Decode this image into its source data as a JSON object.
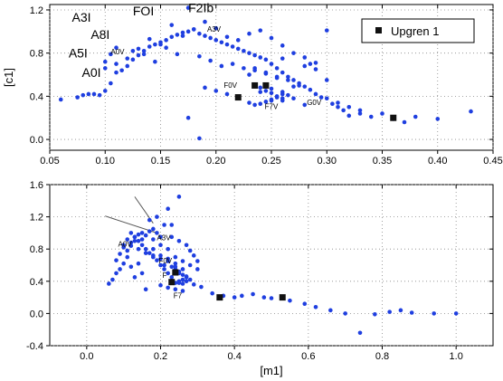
{
  "chart_data": [
    {
      "type": "scatter",
      "title": "",
      "xlabel": "",
      "ylabel": "[c1]",
      "xlim": [
        0.05,
        0.45
      ],
      "ylim": [
        -0.1,
        1.25
      ],
      "xticks": [
        "0.05",
        "0.10",
        "0.15",
        "0.20",
        "0.25",
        "0.30",
        "0.35",
        "0.40",
        "0.45"
      ],
      "yticks": [
        "0.0",
        "0.4",
        "0.8",
        "1.2"
      ],
      "grid": true,
      "legend": {
        "position": "top-right",
        "entries": [
          "Upgren 1"
        ]
      },
      "series": [
        {
          "name": "",
          "color": "#1f3fe0",
          "marker": "circle",
          "x": [
            0.06,
            0.075,
            0.08,
            0.085,
            0.09,
            0.095,
            0.1,
            0.105,
            0.11,
            0.12,
            0.125,
            0.13,
            0.135,
            0.14,
            0.145,
            0.15,
            0.155,
            0.16,
            0.165,
            0.17,
            0.175,
            0.18,
            0.185,
            0.19,
            0.195,
            0.2,
            0.205,
            0.21,
            0.215,
            0.22,
            0.225,
            0.23,
            0.235,
            0.24,
            0.245,
            0.25,
            0.255,
            0.26,
            0.265,
            0.27,
            0.275,
            0.28,
            0.285,
            0.29,
            0.3,
            0.31,
            0.32,
            0.33,
            0.35,
            0.38,
            0.4,
            0.43,
            0.1,
            0.11,
            0.115,
            0.12,
            0.13,
            0.14,
            0.15,
            0.16,
            0.17,
            0.175,
            0.18,
            0.19,
            0.2,
            0.21,
            0.22,
            0.23,
            0.24,
            0.25,
            0.26,
            0.27,
            0.28,
            0.29,
            0.125,
            0.135,
            0.145,
            0.155,
            0.165,
            0.185,
            0.195,
            0.205,
            0.215,
            0.225,
            0.235,
            0.245,
            0.255,
            0.265,
            0.275,
            0.24,
            0.245,
            0.25,
            0.255,
            0.26,
            0.25,
            0.245,
            0.24,
            0.235,
            0.23,
            0.22,
            0.21,
            0.2,
            0.19,
            0.175,
            0.185,
            0.26,
            0.28,
            0.295,
            0.305,
            0.31,
            0.315,
            0.32,
            0.33,
            0.34,
            0.36,
            0.37,
            0.25,
            0.255,
            0.26,
            0.265,
            0.27,
            0.24,
            0.25,
            0.26,
            0.27,
            0.285,
            0.29,
            0.3,
            0.245,
            0.255,
            0.235,
            0.23,
            0.26,
            0.28,
            0.3,
            0.1,
            0.105,
            0.11
          ],
          "y": [
            0.37,
            0.39,
            0.41,
            0.42,
            0.42,
            0.41,
            0.45,
            0.52,
            0.62,
            0.68,
            0.74,
            0.78,
            0.82,
            0.86,
            0.88,
            0.9,
            0.92,
            0.95,
            0.97,
            0.99,
            1.0,
            1.02,
            0.98,
            0.96,
            0.94,
            0.92,
            0.9,
            0.88,
            0.86,
            0.84,
            0.82,
            0.8,
            0.78,
            0.76,
            0.74,
            0.7,
            0.66,
            0.62,
            0.58,
            0.55,
            0.52,
            0.49,
            0.46,
            0.42,
            0.38,
            0.34,
            0.3,
            0.27,
            0.24,
            0.21,
            0.19,
            0.26,
            0.66,
            0.7,
            0.64,
            0.75,
            0.84,
            0.93,
            0.88,
            1.06,
            0.96,
            1.22,
            1.02,
            1.09,
            1.03,
            0.95,
            0.92,
            0.98,
            1.01,
            0.94,
            0.87,
            0.8,
            0.76,
            0.71,
            0.82,
            0.79,
            0.72,
            0.85,
            0.79,
            0.77,
            0.73,
            0.68,
            0.7,
            0.66,
            0.64,
            0.61,
            0.58,
            0.55,
            0.5,
            0.48,
            0.45,
            0.43,
            0.4,
            0.38,
            0.36,
            0.35,
            0.33,
            0.32,
            0.34,
            0.38,
            0.42,
            0.45,
            0.48,
            0.2,
            0.01,
            0.42,
            0.32,
            0.39,
            0.33,
            0.3,
            0.27,
            0.22,
            0.24,
            0.21,
            0.19,
            0.16,
            0.37,
            0.39,
            0.36,
            0.41,
            0.38,
            0.44,
            0.47,
            0.44,
            0.49,
            0.7,
            0.65,
            1.01,
            0.62,
            0.57,
            0.66,
            0.6,
            0.75,
            0.68,
            0.55,
            0.72,
            0.79,
            0.85
          ]
        },
        {
          "name": "Upgren 1",
          "color": "#111111",
          "marker": "square",
          "x": [
            0.22,
            0.235,
            0.245,
            0.36
          ],
          "y": [
            0.39,
            0.5,
            0.5,
            0.2
          ]
        }
      ],
      "annotations": [
        {
          "text": "A3I",
          "x": 0.07,
          "y": 1.09,
          "size": "large"
        },
        {
          "text": "A8I",
          "x": 0.087,
          "y": 0.93,
          "size": "large"
        },
        {
          "text": "A5I",
          "x": 0.067,
          "y": 0.76,
          "size": "large"
        },
        {
          "text": "A0I",
          "x": 0.079,
          "y": 0.58,
          "size": "large"
        },
        {
          "text": "FOI",
          "x": 0.125,
          "y": 1.15,
          "size": "large"
        },
        {
          "text": "F2Ib",
          "x": 0.175,
          "y": 1.18,
          "size": "large"
        },
        {
          "text": "A0V",
          "x": 0.105,
          "y": 0.79,
          "size": "small"
        },
        {
          "text": "A3V",
          "x": 0.192,
          "y": 1.0,
          "size": "small"
        },
        {
          "text": "F0V",
          "x": 0.207,
          "y": 0.48,
          "size": "small"
        },
        {
          "text": "F7V",
          "x": 0.244,
          "y": 0.28,
          "size": "small"
        },
        {
          "text": "G0V",
          "x": 0.282,
          "y": 0.32,
          "size": "small"
        }
      ]
    },
    {
      "type": "scatter",
      "title": "",
      "xlabel": "[m1]",
      "ylabel": "",
      "xlim": [
        -0.1,
        1.1
      ],
      "ylim": [
        -0.4,
        1.6
      ],
      "xticks": [
        "0.0",
        "0.2",
        "0.4",
        "0.6",
        "0.8",
        "1.0"
      ],
      "yticks": [
        "-0.4",
        "0.0",
        "0.4",
        "0.8",
        "1.2",
        "1.6"
      ],
      "grid": true,
      "series": [
        {
          "name": "",
          "color": "#1f3fe0",
          "marker": "circle",
          "x": [
            0.06,
            0.07,
            0.08,
            0.09,
            0.1,
            0.11,
            0.11,
            0.12,
            0.13,
            0.13,
            0.14,
            0.15,
            0.15,
            0.16,
            0.17,
            0.18,
            0.19,
            0.2,
            0.1,
            0.12,
            0.14,
            0.16,
            0.18,
            0.2,
            0.22,
            0.21,
            0.23,
            0.24,
            0.25,
            0.26,
            0.27,
            0.26,
            0.25,
            0.24,
            0.23,
            0.22,
            0.21,
            0.2,
            0.19,
            0.18,
            0.17,
            0.16,
            0.15,
            0.14,
            0.13,
            0.12,
            0.11,
            0.1,
            0.09,
            0.08,
            0.17,
            0.19,
            0.21,
            0.23,
            0.25,
            0.27,
            0.29,
            0.22,
            0.24,
            0.26,
            0.28,
            0.3,
            0.25,
            0.26,
            0.27,
            0.28,
            0.29,
            0.31,
            0.22,
            0.24,
            0.26,
            0.24,
            0.25,
            0.23,
            0.34,
            0.37,
            0.4,
            0.42,
            0.45,
            0.48,
            0.5,
            0.55,
            0.59,
            0.62,
            0.66,
            0.7,
            0.74,
            0.78,
            0.82,
            0.85,
            0.88,
            0.94,
            1.0,
            0.25,
            0.27,
            0.24,
            0.26,
            0.2,
            0.22,
            0.18,
            0.15,
            0.13,
            0.2,
            0.16,
            0.28,
            0.3,
            0.12,
            0.14,
            0.18,
            0.2,
            0.22
          ],
          "y": [
            0.37,
            0.42,
            0.5,
            0.55,
            0.62,
            0.7,
            0.78,
            0.84,
            0.9,
            0.95,
            0.98,
            1.0,
            0.92,
            0.97,
            1.02,
            1.05,
            1.0,
            0.95,
            0.85,
            0.88,
            0.8,
            0.75,
            0.72,
            0.68,
            0.65,
            0.6,
            0.58,
            0.55,
            0.52,
            0.48,
            0.45,
            0.42,
            0.4,
            0.38,
            0.45,
            0.5,
            0.55,
            0.6,
            0.66,
            0.7,
            0.75,
            0.8,
            0.85,
            0.9,
            0.95,
            1.0,
            0.92,
            0.82,
            0.74,
            0.66,
            1.16,
            1.2,
            1.1,
            0.95,
            0.9,
            0.85,
            0.72,
            0.8,
            0.7,
            0.65,
            0.6,
            0.55,
            0.38,
            0.37,
            0.4,
            0.42,
            0.36,
            0.33,
            0.32,
            0.3,
            0.28,
            0.62,
            1.45,
            1.1,
            0.25,
            0.22,
            0.2,
            0.22,
            0.24,
            0.2,
            0.19,
            0.16,
            0.12,
            0.08,
            0.04,
            0.0,
            -0.24,
            -0.01,
            0.02,
            0.04,
            0.01,
            0.0,
            0.0,
            0.5,
            0.46,
            0.58,
            0.55,
            0.72,
            0.68,
            0.92,
            0.5,
            0.45,
            0.35,
            0.3,
            0.78,
            0.65,
            0.58,
            0.62,
            0.8,
            0.85,
            1.3
          ],
          "labels": [],
          "series_label": ""
        },
        {
          "name": "",
          "color": "#111111",
          "marker": "square",
          "x": [
            0.23,
            0.24,
            0.36,
            0.53
          ],
          "y": [
            0.39,
            0.51,
            0.2,
            0.2
          ]
        }
      ],
      "annotations": [
        {
          "text": "A0V",
          "x": 0.085,
          "y": 0.83,
          "size": "small"
        },
        {
          "text": "A3V",
          "x": 0.19,
          "y": 0.91,
          "size": "small"
        },
        {
          "text": "F0V",
          "x": 0.195,
          "y": 0.62,
          "size": "small"
        },
        {
          "text": "F",
          "x": 0.205,
          "y": 0.44,
          "size": "small"
        },
        {
          "text": "F7",
          "x": 0.235,
          "y": 0.19,
          "size": "small"
        }
      ],
      "lines": [
        {
          "x": [
            0.05,
            0.19
          ],
          "y": [
            1.21,
            1.0
          ]
        },
        {
          "x": [
            0.13,
            0.18
          ],
          "y": [
            1.45,
            1.12
          ]
        }
      ]
    }
  ]
}
